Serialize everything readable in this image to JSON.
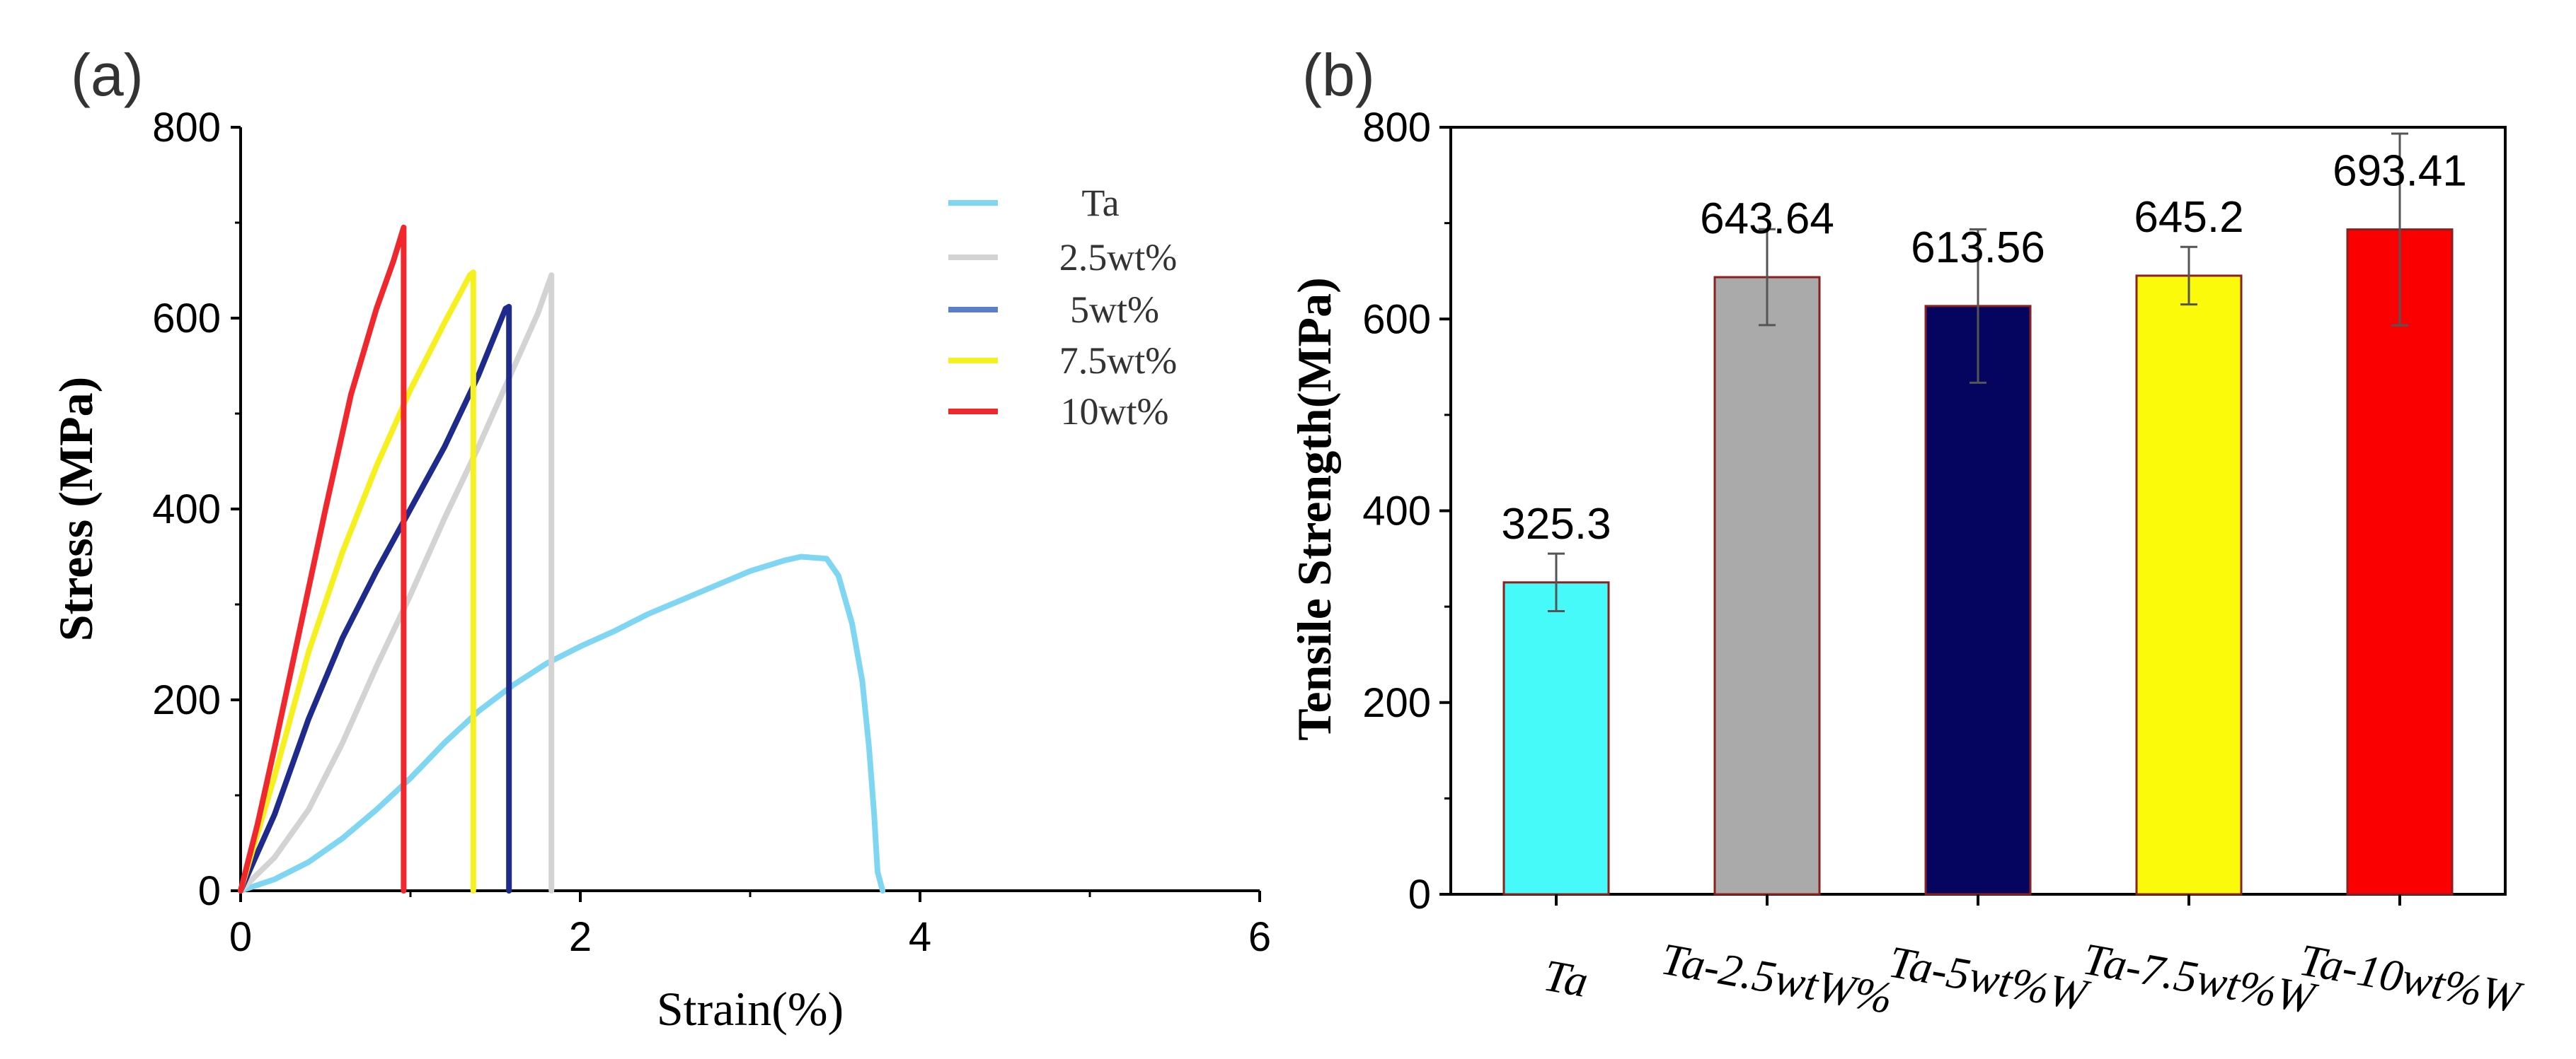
{
  "colors": {
    "Ta": "#7fd6f2",
    "2.5wt%": "#d3d3d3",
    "5wt%": "#1e2a8c",
    "7.5wt%": "#f5f01e",
    "10wt%": "#f0282d",
    "bar_cyan": "#46fafa",
    "bar_gray": "#aaaaaa",
    "bar_navy": "#05055f",
    "bar_yellow": "#fafa0a",
    "bar_red": "#fa0000"
  },
  "chart_data": [
    {
      "type": "line",
      "panel_label": "(a)",
      "xlabel": "Strain(%)",
      "ylabel": "Stress (MPa)",
      "xlim": [
        0,
        6
      ],
      "ylim": [
        0,
        800
      ],
      "xticks": [
        0,
        2,
        4,
        6
      ],
      "yticks": [
        0,
        200,
        400,
        600,
        800
      ],
      "legend_position": "top-right",
      "series": [
        {
          "name": "Ta",
          "color": "#7fd6f2",
          "points": [
            [
              0,
              0
            ],
            [
              0.2,
              12
            ],
            [
              0.4,
              30
            ],
            [
              0.6,
              55
            ],
            [
              0.8,
              85
            ],
            [
              1.0,
              118
            ],
            [
              1.2,
              155
            ],
            [
              1.4,
              188
            ],
            [
              1.6,
              215
            ],
            [
              1.8,
              238
            ],
            [
              2.0,
              256
            ],
            [
              2.2,
              272
            ],
            [
              2.4,
              290
            ],
            [
              2.6,
              305
            ],
            [
              2.8,
              320
            ],
            [
              3.0,
              335
            ],
            [
              3.2,
              346
            ],
            [
              3.3,
              350
            ],
            [
              3.45,
              348
            ],
            [
              3.52,
              330
            ],
            [
              3.6,
              280
            ],
            [
              3.66,
              220
            ],
            [
              3.7,
              150
            ],
            [
              3.73,
              80
            ],
            [
              3.75,
              20
            ],
            [
              3.78,
              0
            ]
          ]
        },
        {
          "name": "2.5wt%",
          "color": "#d3d3d3",
          "points": [
            [
              0,
              0
            ],
            [
              0.2,
              35
            ],
            [
              0.4,
              85
            ],
            [
              0.6,
              155
            ],
            [
              0.8,
              235
            ],
            [
              1.0,
              310
            ],
            [
              1.2,
              390
            ],
            [
              1.4,
              465
            ],
            [
              1.6,
              545
            ],
            [
              1.75,
              605
            ],
            [
              1.83,
              645
            ],
            [
              1.83,
              0
            ]
          ]
        },
        {
          "name": "5wt%",
          "color": "#1e2a8c",
          "points": [
            [
              0,
              0
            ],
            [
              0.2,
              80
            ],
            [
              0.4,
              180
            ],
            [
              0.6,
              265
            ],
            [
              0.8,
              335
            ],
            [
              1.0,
              400
            ],
            [
              1.2,
              465
            ],
            [
              1.4,
              540
            ],
            [
              1.56,
              610
            ],
            [
              1.58,
              612
            ],
            [
              1.58,
              0
            ]
          ]
        },
        {
          "name": "7.5wt%",
          "color": "#f5f01e",
          "points": [
            [
              0,
              0
            ],
            [
              0.2,
              120
            ],
            [
              0.4,
              250
            ],
            [
              0.6,
              355
            ],
            [
              0.8,
              445
            ],
            [
              1.0,
              525
            ],
            [
              1.2,
              595
            ],
            [
              1.35,
              645
            ],
            [
              1.37,
              648
            ],
            [
              1.37,
              0
            ]
          ]
        },
        {
          "name": "10wt%",
          "color": "#f0282d",
          "points": [
            [
              0,
              0
            ],
            [
              0.1,
              70
            ],
            [
              0.2,
              150
            ],
            [
              0.35,
              275
            ],
            [
              0.5,
              400
            ],
            [
              0.65,
              520
            ],
            [
              0.8,
              610
            ],
            [
              0.9,
              660
            ],
            [
              0.96,
              695
            ],
            [
              0.96,
              0
            ]
          ]
        }
      ]
    },
    {
      "type": "bar",
      "panel_label": "(b)",
      "ylabel": "Tensile  Strength(MPa)",
      "xlabel": "",
      "ylim": [
        0,
        800
      ],
      "yticks": [
        0,
        200,
        400,
        600,
        800
      ],
      "categories": [
        "Ta",
        "Ta-2.5wtW%",
        "Ta-5wt%W",
        "Ta-7.5wt%W",
        "Ta-10wt%W"
      ],
      "values": [
        325.3,
        643.64,
        613.56,
        645.2,
        693.41
      ],
      "value_labels": [
        "325.3",
        "643.64",
        "613.56",
        "645.2",
        "693.41"
      ],
      "errors": [
        30,
        50,
        80,
        30,
        100
      ],
      "bar_colors": [
        "#46fafa",
        "#aaaaaa",
        "#05055f",
        "#fafa0a",
        "#fa0000"
      ]
    }
  ]
}
